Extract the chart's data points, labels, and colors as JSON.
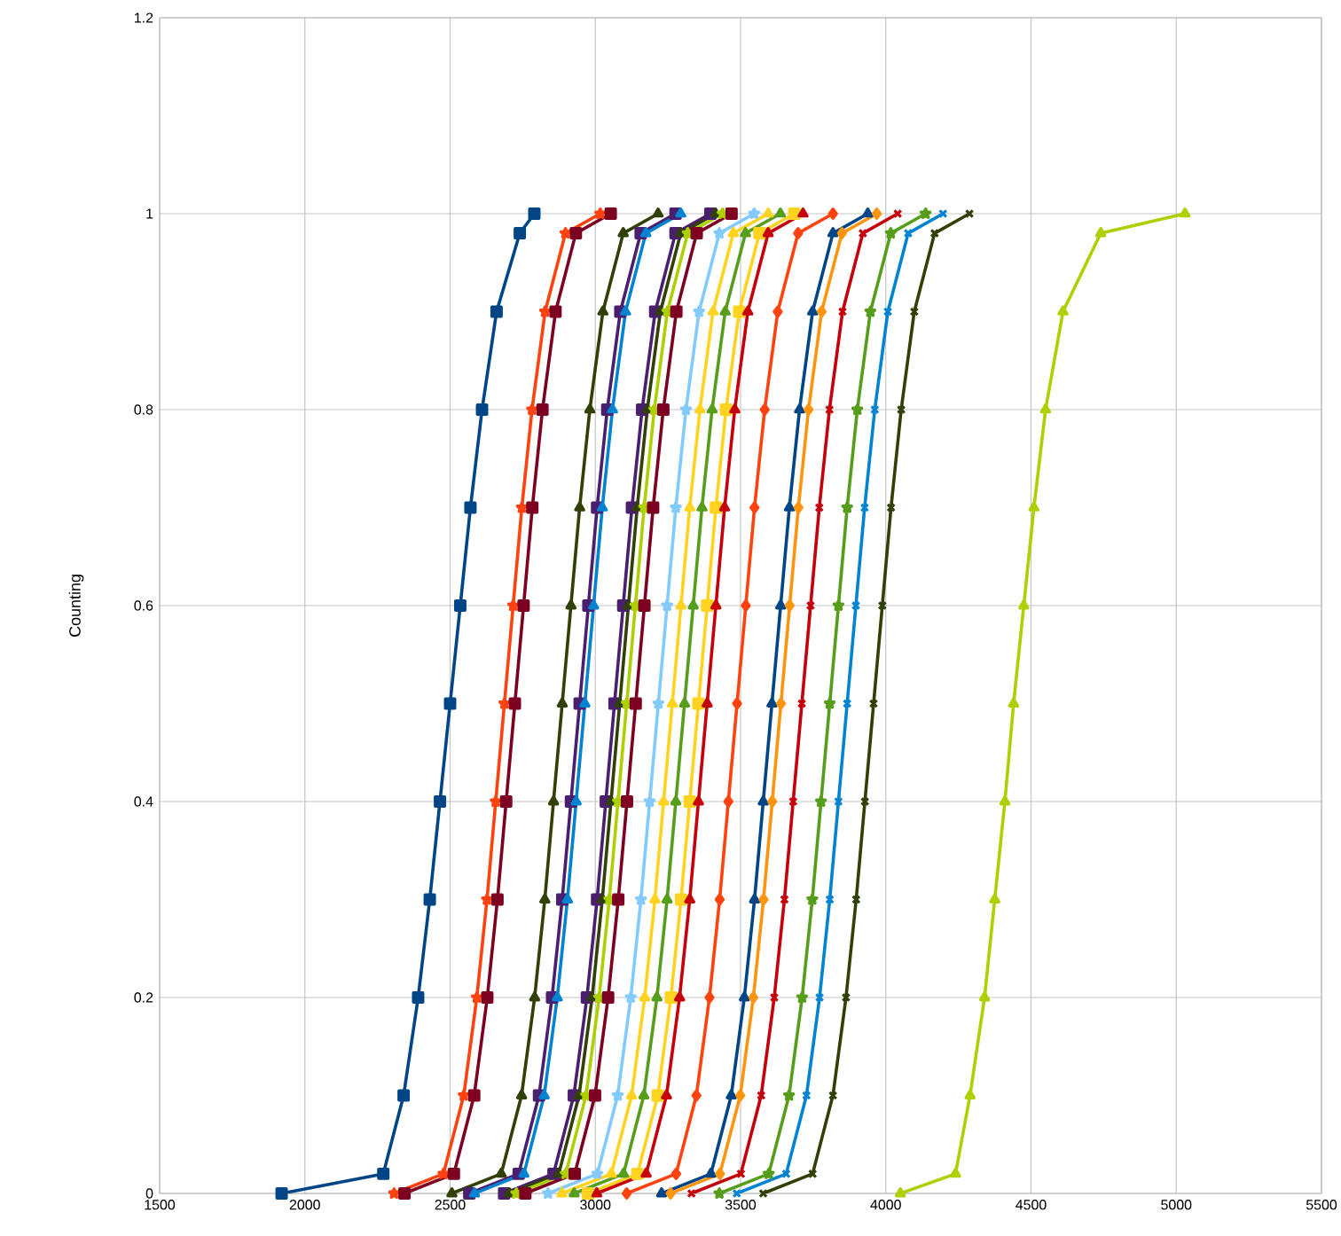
{
  "chart_data": {
    "type": "line",
    "ylabel": "Counting",
    "xlim": [
      1500,
      5500
    ],
    "ylim": [
      0,
      1.2
    ],
    "xticks": [
      1500,
      2000,
      2500,
      3000,
      3500,
      4000,
      4500,
      5000,
      5500
    ],
    "yticks": [
      0,
      0.2,
      0.4,
      0.6,
      0.8,
      1,
      1.2
    ],
    "grid": true,
    "series": [
      {
        "color": "#004586",
        "marker": "square",
        "x": [
          1920,
          2270,
          2340,
          2390,
          2430,
          2465,
          2500,
          2535,
          2570,
          2610,
          2660,
          2740,
          2790
        ],
        "values": [
          0,
          0.02,
          0.1,
          0.2,
          0.3,
          0.4,
          0.5,
          0.6,
          0.7,
          0.8,
          0.9,
          0.98,
          1
        ]
      },
      {
        "color": "#ff420e",
        "marker": "star",
        "x": [
          2307,
          2477,
          2547,
          2592,
          2627,
          2657,
          2687,
          2717,
          2747,
          2782,
          2827,
          2897,
          3017
        ],
        "values": [
          0,
          0.02,
          0.1,
          0.2,
          0.3,
          0.4,
          0.5,
          0.6,
          0.7,
          0.8,
          0.9,
          0.98,
          1
        ]
      },
      {
        "color": "#7e0021",
        "marker": "square",
        "x": [
          2343,
          2513,
          2583,
          2628,
          2663,
          2693,
          2723,
          2753,
          2783,
          2818,
          2863,
          2933,
          3053
        ],
        "values": [
          0,
          0.02,
          0.1,
          0.2,
          0.3,
          0.4,
          0.5,
          0.6,
          0.7,
          0.8,
          0.9,
          0.98,
          1
        ]
      },
      {
        "color": "#314004",
        "marker": "triangle",
        "x": [
          2506,
          2676,
          2746,
          2791,
          2826,
          2856,
          2886,
          2916,
          2946,
          2981,
          3026,
          3096,
          3216
        ],
        "values": [
          0,
          0.02,
          0.1,
          0.2,
          0.3,
          0.4,
          0.5,
          0.6,
          0.7,
          0.8,
          0.9,
          0.98,
          1
        ]
      },
      {
        "color": "#4b1f6f",
        "marker": "square",
        "x": [
          2566,
          2736,
          2806,
          2851,
          2886,
          2916,
          2946,
          2976,
          3006,
          3041,
          3086,
          3156,
          3276
        ],
        "values": [
          0,
          0.02,
          0.1,
          0.2,
          0.3,
          0.4,
          0.5,
          0.6,
          0.7,
          0.8,
          0.9,
          0.98,
          1
        ]
      },
      {
        "color": "#0084d1",
        "marker": "triangle",
        "x": [
          2584,
          2754,
          2824,
          2869,
          2904,
          2934,
          2964,
          2994,
          3024,
          3059,
          3104,
          3174,
          3294
        ],
        "values": [
          0,
          0.02,
          0.1,
          0.2,
          0.3,
          0.4,
          0.5,
          0.6,
          0.7,
          0.8,
          0.9,
          0.98,
          1
        ]
      },
      {
        "color": "#4b1f6f",
        "marker": "square",
        "x": [
          2686,
          2856,
          2926,
          2971,
          3006,
          3036,
          3066,
          3096,
          3126,
          3161,
          3206,
          3276,
          3396
        ],
        "values": [
          0,
          0.02,
          0.1,
          0.2,
          0.3,
          0.4,
          0.5,
          0.6,
          0.7,
          0.8,
          0.9,
          0.98,
          1
        ]
      },
      {
        "color": "#314004",
        "marker": "triangle",
        "x": [
          2704,
          2874,
          2944,
          2989,
          3024,
          3054,
          3084,
          3114,
          3144,
          3179,
          3224,
          3294,
          3414
        ],
        "values": [
          0,
          0.02,
          0.1,
          0.2,
          0.3,
          0.4,
          0.5,
          0.6,
          0.7,
          0.8,
          0.9,
          0.98,
          1
        ]
      },
      {
        "color": "#aecf00",
        "marker": "star",
        "x": [
          2728,
          2898,
          2968,
          3013,
          3048,
          3078,
          3108,
          3138,
          3168,
          3203,
          3248,
          3318,
          3438
        ],
        "values": [
          0,
          0.02,
          0.1,
          0.2,
          0.3,
          0.4,
          0.5,
          0.6,
          0.7,
          0.8,
          0.9,
          0.98,
          1
        ]
      },
      {
        "color": "#7e0021",
        "marker": "square",
        "x": [
          2759,
          2929,
          2999,
          3044,
          3079,
          3109,
          3139,
          3169,
          3199,
          3234,
          3279,
          3349,
          3469
        ],
        "values": [
          0,
          0.02,
          0.1,
          0.2,
          0.3,
          0.4,
          0.5,
          0.6,
          0.7,
          0.8,
          0.9,
          0.98,
          1
        ]
      },
      {
        "color": "#83caff",
        "marker": "star",
        "x": [
          2837,
          3007,
          3077,
          3122,
          3157,
          3187,
          3217,
          3247,
          3277,
          3312,
          3357,
          3427,
          3547
        ],
        "values": [
          0,
          0.02,
          0.1,
          0.2,
          0.3,
          0.4,
          0.5,
          0.6,
          0.7,
          0.8,
          0.9,
          0.98,
          1
        ]
      },
      {
        "color": "#ffd320",
        "marker": "triangle",
        "x": [
          2885,
          3055,
          3125,
          3170,
          3205,
          3235,
          3265,
          3295,
          3325,
          3360,
          3405,
          3475,
          3595
        ],
        "values": [
          0,
          0.02,
          0.1,
          0.2,
          0.3,
          0.4,
          0.5,
          0.6,
          0.7,
          0.8,
          0.9,
          0.98,
          1
        ]
      },
      {
        "color": "#579d1c",
        "marker": "triangle",
        "x": [
          2927,
          3097,
          3167,
          3212,
          3247,
          3277,
          3307,
          3337,
          3367,
          3402,
          3447,
          3517,
          3637
        ],
        "values": [
          0,
          0.02,
          0.1,
          0.2,
          0.3,
          0.4,
          0.5,
          0.6,
          0.7,
          0.8,
          0.9,
          0.98,
          1
        ]
      },
      {
        "color": "#ffd320",
        "marker": "square",
        "x": [
          2975,
          3145,
          3215,
          3260,
          3295,
          3325,
          3355,
          3385,
          3415,
          3450,
          3495,
          3565,
          3685
        ],
        "values": [
          0,
          0.02,
          0.1,
          0.2,
          0.3,
          0.4,
          0.5,
          0.6,
          0.7,
          0.8,
          0.9,
          0.98,
          1
        ]
      },
      {
        "color": "#c5000b",
        "marker": "triangle",
        "x": [
          3005,
          3175,
          3245,
          3290,
          3325,
          3355,
          3385,
          3415,
          3445,
          3480,
          3525,
          3595,
          3715
        ],
        "values": [
          0,
          0.02,
          0.1,
          0.2,
          0.3,
          0.4,
          0.5,
          0.6,
          0.7,
          0.8,
          0.9,
          0.98,
          1
        ]
      },
      {
        "color": "#ff420e",
        "marker": "diamond",
        "x": [
          3108,
          3278,
          3348,
          3393,
          3428,
          3458,
          3488,
          3518,
          3548,
          3583,
          3628,
          3698,
          3818
        ],
        "values": [
          0,
          0.02,
          0.1,
          0.2,
          0.3,
          0.4,
          0.5,
          0.6,
          0.7,
          0.8,
          0.9,
          0.98,
          1
        ]
      },
      {
        "color": "#004586",
        "marker": "triangle",
        "x": [
          3228,
          3398,
          3468,
          3513,
          3548,
          3578,
          3608,
          3638,
          3668,
          3703,
          3748,
          3818,
          3938
        ],
        "values": [
          0,
          0.02,
          0.1,
          0.2,
          0.3,
          0.4,
          0.5,
          0.6,
          0.7,
          0.8,
          0.9,
          0.98,
          1
        ]
      },
      {
        "color": "#ff950e",
        "marker": "diamond",
        "x": [
          3259,
          3429,
          3499,
          3544,
          3579,
          3609,
          3639,
          3669,
          3699,
          3734,
          3779,
          3849,
          3969
        ],
        "values": [
          0,
          0.02,
          0.1,
          0.2,
          0.3,
          0.4,
          0.5,
          0.6,
          0.7,
          0.8,
          0.9,
          0.98,
          1
        ]
      },
      {
        "color": "#c5000b",
        "marker": "cross",
        "x": [
          3331,
          3501,
          3571,
          3616,
          3651,
          3681,
          3711,
          3741,
          3771,
          3806,
          3851,
          3921,
          4041
        ],
        "values": [
          0,
          0.02,
          0.1,
          0.2,
          0.3,
          0.4,
          0.5,
          0.6,
          0.7,
          0.8,
          0.9,
          0.98,
          1
        ]
      },
      {
        "color": "#579d1c",
        "marker": "star",
        "x": [
          3427,
          3597,
          3667,
          3712,
          3747,
          3777,
          3807,
          3837,
          3867,
          3902,
          3947,
          4017,
          4137
        ],
        "values": [
          0,
          0.02,
          0.1,
          0.2,
          0.3,
          0.4,
          0.5,
          0.6,
          0.7,
          0.8,
          0.9,
          0.98,
          1
        ]
      },
      {
        "color": "#0084d1",
        "marker": "cross",
        "x": [
          3487,
          3657,
          3727,
          3772,
          3807,
          3837,
          3867,
          3897,
          3927,
          3962,
          4007,
          4077,
          4197
        ],
        "values": [
          0,
          0.02,
          0.1,
          0.2,
          0.3,
          0.4,
          0.5,
          0.6,
          0.7,
          0.8,
          0.9,
          0.98,
          1
        ]
      },
      {
        "color": "#314004",
        "marker": "cross",
        "x": [
          3578,
          3748,
          3818,
          3863,
          3898,
          3928,
          3958,
          3988,
          4018,
          4053,
          4098,
          4168,
          4288
        ],
        "values": [
          0,
          0.02,
          0.1,
          0.2,
          0.3,
          0.4,
          0.5,
          0.6,
          0.7,
          0.8,
          0.9,
          0.98,
          1
        ]
      },
      {
        "color": "#aecf00",
        "marker": "triangle",
        "x": [
          4050,
          4240,
          4290,
          4340,
          4375,
          4410,
          4440,
          4475,
          4510,
          4550,
          4610,
          4740,
          5030
        ],
        "values": [
          0,
          0.02,
          0.1,
          0.2,
          0.3,
          0.4,
          0.5,
          0.6,
          0.7,
          0.8,
          0.9,
          0.98,
          1
        ]
      }
    ]
  }
}
